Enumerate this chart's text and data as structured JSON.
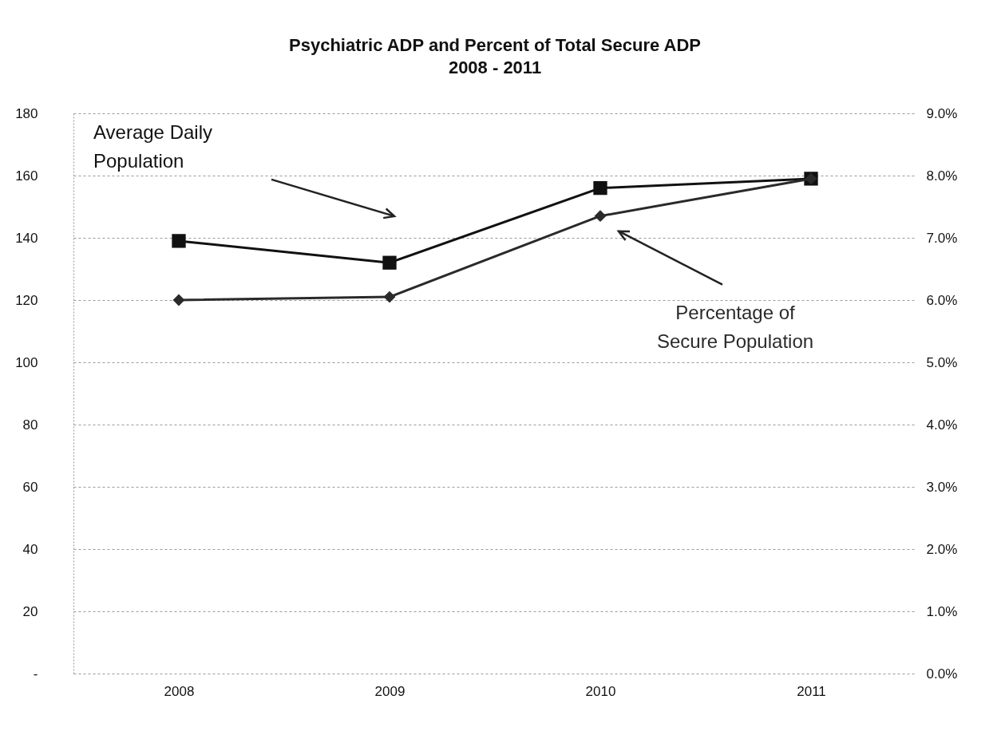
{
  "chart_data": {
    "type": "line",
    "title": "Psychiatric ADP and Percent of Total Secure ADP",
    "subtitle": "2008 - 2011",
    "categories": [
      "2008",
      "2009",
      "2010",
      "2011"
    ],
    "series": [
      {
        "name": "Average Daily Population",
        "color": "#111111",
        "marker": "square",
        "values": [
          139,
          132,
          156,
          159
        ]
      },
      {
        "name": "Percentage of Secure Population",
        "color": "#2a2a2a",
        "marker": "diamond",
        "axis": "y2",
        "values": [
          6.0,
          6.05,
          7.35,
          7.95
        ]
      }
    ],
    "ylim": [
      0,
      180
    ],
    "yticks": [
      {
        "value": 0,
        "label": "-"
      },
      20,
      40,
      60,
      80,
      100,
      120,
      140,
      160,
      180
    ],
    "y2lim": [
      0,
      9
    ],
    "y2ticks": [
      {
        "value": 0,
        "label": "0.0%"
      },
      {
        "value": 1,
        "label": "1.0%"
      },
      {
        "value": 2,
        "label": "2.0%"
      },
      {
        "value": 3,
        "label": "3.0%"
      },
      {
        "value": 4,
        "label": "4.0%"
      },
      {
        "value": 5,
        "label": "5.0%"
      },
      {
        "value": 6,
        "label": "6.0%"
      },
      {
        "value": 7,
        "label": "7.0%"
      },
      {
        "value": 8,
        "label": "8.0%"
      },
      {
        "value": 9,
        "label": "9.0%"
      }
    ],
    "grid": "y"
  }
}
